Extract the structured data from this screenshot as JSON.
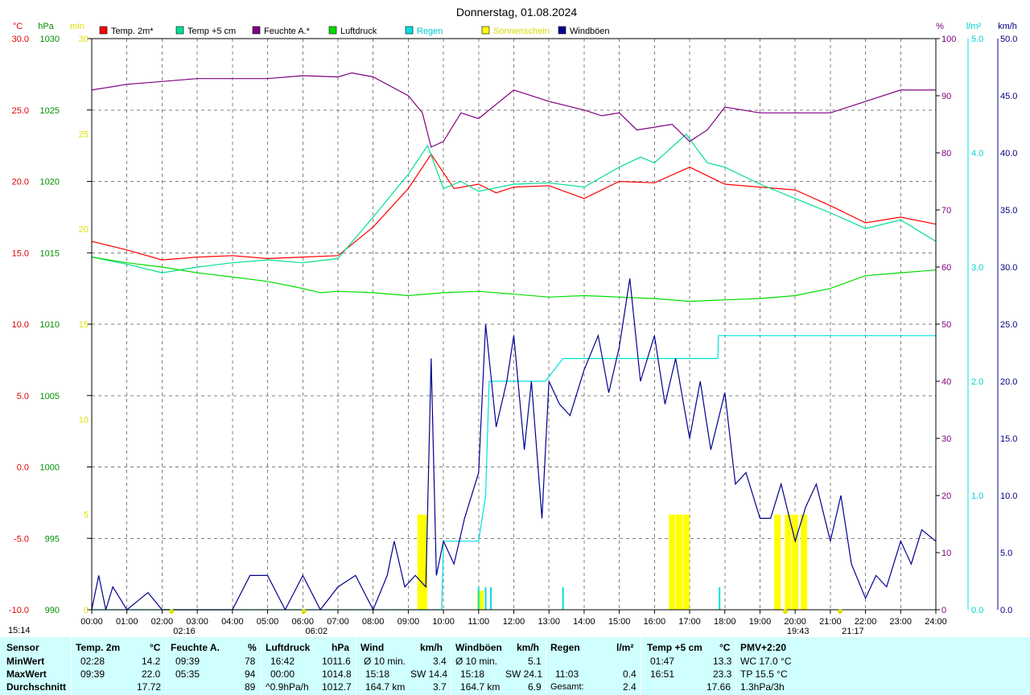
{
  "chart_data": {
    "type": "line",
    "title": "Donnerstag, 01.08.2024",
    "x_axis": {
      "ticks": [
        "00:00",
        "01:00",
        "02:00",
        "03:00",
        "04:00",
        "05:00",
        "06:00",
        "07:00",
        "08:00",
        "09:00",
        "10:00",
        "11:00",
        "12:00",
        "13:00",
        "14:00",
        "15:00",
        "16:00",
        "17:00",
        "18:00",
        "19:00",
        "20:00",
        "21:00",
        "22:00",
        "23:00",
        "24:00"
      ],
      "range_hours": [
        0,
        24
      ]
    },
    "axes": {
      "temp": {
        "unit": "°C",
        "range": [
          -10,
          30
        ],
        "ticks": [
          "30.0",
          "25.0",
          "20.0",
          "15.0",
          "10.0",
          "5.0",
          "0.0",
          "-5.0",
          "-10.0"
        ]
      },
      "pressure": {
        "unit": "hPa",
        "range": [
          990,
          1030
        ],
        "ticks": [
          "1030",
          "1025",
          "1020",
          "1015",
          "1010",
          "1005",
          "1000",
          "995",
          "990"
        ]
      },
      "sunshine": {
        "unit": "min",
        "range": [
          0,
          30
        ],
        "ticks": [
          "30",
          "25",
          "20",
          "15",
          "10",
          "5",
          "0"
        ]
      },
      "humidity": {
        "unit": "%",
        "range": [
          0,
          100
        ],
        "ticks": [
          "100",
          "90",
          "80",
          "70",
          "60",
          "50",
          "40",
          "30",
          "20",
          "10",
          "0"
        ]
      },
      "rain": {
        "unit": "l/m²",
        "range": [
          0,
          5
        ],
        "ticks": [
          "5.0",
          "4.0",
          "3.0",
          "2.0",
          "1.0",
          "0.0"
        ]
      },
      "wind": {
        "unit": "km/h",
        "range": [
          0,
          50
        ],
        "ticks": [
          "50.0",
          "45.0",
          "40.0",
          "35.0",
          "30.0",
          "25.0",
          "20.0",
          "15.0",
          "10.0",
          "5.0",
          "0.0"
        ]
      }
    },
    "legend": [
      {
        "name": "Temp. 2m*",
        "color": "#ff0000"
      },
      {
        "name": "Temp +5 cm",
        "color": "#00e090"
      },
      {
        "name": "Feuchte A.*",
        "color": "#800080"
      },
      {
        "name": "Luftdruck",
        "color": "#00dd00"
      },
      {
        "name": "Regen",
        "color": "#00e0e0"
      },
      {
        "name": "Sonnenschein",
        "color": "#ffff00"
      },
      {
        "name": "Windböen",
        "color": "#000090"
      }
    ],
    "series": [
      {
        "name": "Temp. 2m*",
        "axis": "temp",
        "color": "#ff0000",
        "x": [
          0,
          1,
          2,
          3,
          4,
          5,
          6,
          7,
          8,
          9,
          9.65,
          10.3,
          11,
          11.5,
          12,
          13,
          14,
          15,
          16,
          17,
          18,
          19,
          20,
          21,
          22,
          23,
          24
        ],
        "y": [
          15.8,
          15.2,
          14.5,
          14.7,
          14.8,
          14.6,
          14.7,
          14.8,
          16.8,
          19.5,
          21.9,
          19.5,
          19.8,
          19.2,
          19.6,
          19.7,
          18.8,
          20.0,
          19.9,
          21.0,
          19.8,
          19.6,
          19.4,
          18.3,
          17.1,
          17.5,
          17.0
        ]
      },
      {
        "name": "Temp +5 cm",
        "axis": "temp",
        "color": "#00e090",
        "x": [
          0,
          1,
          2,
          3,
          4,
          5,
          6,
          7,
          8,
          9,
          9.55,
          10,
          10.5,
          11,
          12,
          13,
          14,
          15,
          15.6,
          16,
          16.9,
          17.5,
          18,
          19,
          20,
          21,
          22,
          23,
          24
        ],
        "y": [
          14.7,
          14.2,
          13.6,
          14.0,
          14.3,
          14.5,
          14.3,
          14.6,
          17.5,
          20.5,
          22.5,
          19.5,
          20.0,
          19.3,
          19.8,
          19.9,
          19.6,
          21.0,
          21.7,
          21.3,
          23.3,
          21.3,
          21.0,
          19.8,
          18.8,
          17.8,
          16.7,
          17.3,
          15.8
        ]
      },
      {
        "name": "Feuchte A.*",
        "axis": "humidity",
        "color": "#800080",
        "x": [
          0,
          0.5,
          1,
          2,
          3,
          4,
          5,
          6,
          7,
          7.4,
          8,
          9,
          9.4,
          9.65,
          10,
          10.5,
          11,
          12,
          13,
          14,
          14.5,
          15,
          15.5,
          16,
          16.5,
          17,
          17.5,
          18,
          19,
          20,
          21,
          22,
          23,
          24
        ],
        "y": [
          91,
          91.5,
          92,
          92.5,
          93,
          93,
          93,
          93.5,
          93.3,
          94,
          93.3,
          90,
          87,
          81,
          82,
          87,
          86,
          91,
          89,
          87.5,
          86.5,
          87,
          84,
          84.5,
          85,
          82,
          84,
          88,
          87,
          87,
          87,
          89,
          91,
          91
        ]
      },
      {
        "name": "Luftdruck",
        "axis": "pressure",
        "color": "#00dd00",
        "x": [
          0,
          1,
          2,
          3,
          4,
          5,
          6,
          6.5,
          7,
          8,
          9,
          10,
          11,
          12,
          13,
          14,
          15,
          16,
          17,
          18,
          19,
          20,
          21,
          22,
          23,
          24
        ],
        "y": [
          1014.7,
          1014.3,
          1014.0,
          1013.6,
          1013.3,
          1013.0,
          1012.5,
          1012.2,
          1012.3,
          1012.2,
          1012.0,
          1012.2,
          1012.3,
          1012.1,
          1011.9,
          1012.0,
          1011.9,
          1011.8,
          1011.6,
          1011.7,
          1011.8,
          1012.0,
          1012.5,
          1013.4,
          1013.6,
          1013.8
        ]
      },
      {
        "name": "Regen",
        "axis": "rain",
        "color": "#00e0e0",
        "x": [
          0,
          9.95,
          10,
          11.0,
          11.2,
          11.3,
          12,
          12.9,
          13.4,
          15.0,
          16.0,
          17.8,
          17.82,
          24
        ],
        "y": [
          0,
          0,
          0.6,
          0.6,
          1.0,
          2.0,
          2.0,
          2.0,
          2.2,
          2.2,
          2.2,
          2.2,
          2.4,
          2.4
        ]
      },
      {
        "name": "Windböen",
        "axis": "wind",
        "color": "#000090",
        "x": [
          0,
          0.2,
          0.4,
          0.6,
          1,
          1.6,
          2,
          3,
          4,
          4.5,
          5,
          5.5,
          6,
          6.5,
          7,
          7.5,
          8,
          8.4,
          8.6,
          8.9,
          9.2,
          9.5,
          9.65,
          9.8,
          10,
          10.3,
          10.6,
          11,
          11.2,
          11.5,
          11.8,
          12,
          12.3,
          12.5,
          12.8,
          13,
          13.3,
          13.6,
          14,
          14.4,
          14.7,
          15,
          15.3,
          15.6,
          16,
          16.3,
          16.6,
          17,
          17.3,
          17.6,
          18,
          18.3,
          18.6,
          19,
          19.3,
          19.6,
          20,
          20.3,
          20.6,
          21,
          21.3,
          21.6,
          22,
          22.3,
          22.6,
          23,
          23.3,
          23.6,
          24
        ],
        "y": [
          0,
          3,
          0,
          2,
          0,
          1.5,
          0,
          0,
          0,
          3,
          3,
          0,
          3,
          0,
          2,
          3,
          0,
          3,
          6,
          2,
          3,
          2,
          22,
          3,
          6,
          4,
          8,
          12,
          25,
          16,
          20,
          24,
          14,
          20,
          8,
          20,
          18,
          17,
          21,
          24,
          19,
          23,
          29,
          20,
          24,
          18,
          22,
          15,
          20,
          14,
          19,
          11,
          12,
          8,
          8,
          11,
          6,
          9,
          11,
          6,
          10,
          4,
          1,
          3,
          2,
          6,
          4,
          7,
          6
        ]
      }
    ],
    "sunshine_bars": [
      {
        "x": 9.35,
        "min": 5
      },
      {
        "x": 9.45,
        "min": 5
      },
      {
        "x": 11.05,
        "min": 1
      },
      {
        "x": 16.5,
        "min": 5
      },
      {
        "x": 16.7,
        "min": 5
      },
      {
        "x": 16.9,
        "min": 5
      },
      {
        "x": 19.5,
        "min": 5
      },
      {
        "x": 19.8,
        "min": 5
      },
      {
        "x": 20.0,
        "min": 5
      },
      {
        "x": 20.25,
        "min": 5
      }
    ],
    "rain_ticks": [
      11.0,
      11.2,
      11.35,
      17.85,
      13.4
    ],
    "markers": [
      {
        "label": "02:16",
        "x": 2.27
      },
      {
        "label": "06:02",
        "x": 6.03
      },
      {
        "label": "19:43",
        "x": 19.72
      },
      {
        "label": "21:17",
        "x": 21.28
      }
    ],
    "corner_time": "15:14"
  },
  "footer": {
    "sensor": {
      "header": "Sensor",
      "rows": [
        "MinWert",
        "MaxWert",
        "Durchschnitt"
      ]
    },
    "temp2m": {
      "title": "Temp. 2m",
      "unit": "°C",
      "min_time": "02:28",
      "min_val": "14.2",
      "max_time": "09:39",
      "max_val": "22.0",
      "avg": "17.72"
    },
    "humidity": {
      "title": "Feuchte A.",
      "unit": "%",
      "min_time": "09:39",
      "min_val": "78",
      "max_time": "05:35",
      "max_val": "94",
      "avg": "89"
    },
    "pressure": {
      "title": "Luftdruck",
      "unit": "hPa",
      "min_time": "16:42",
      "min_val": "1011.6",
      "max_time": "00:00",
      "max_val": "1014.8",
      "trend": "^0.9hPa/h",
      "avg": "1012.7"
    },
    "wind": {
      "title": "Wind",
      "unit": "km/h",
      "r1_label": "Ø 10 min.",
      "r1_val": "3.4",
      "r2_time": "15:18",
      "r2_dir": "SW 14.4",
      "r3_km": "164.7 km",
      "r3_val": "3.7"
    },
    "gusts": {
      "title": "Windböen",
      "unit": "km/h",
      "r1_label": "Ø 10 min.",
      "r1_val": "5.1",
      "r2_time": "15:18",
      "r2_dir": "SW 24.1",
      "r3_km": "164.7 km",
      "r3_val": "6.9"
    },
    "rain": {
      "title": "Regen",
      "unit": "l/m²",
      "r2_time": "11:03",
      "r2_val": "0.4",
      "r3_label": "Gesamt:",
      "r3_val": "2.4"
    },
    "temp5": {
      "title": "Temp +5 cm",
      "unit": "°C",
      "min_time": "01:47",
      "min_val": "13.3",
      "max_time": "16:51",
      "max_val": "23.3",
      "avg": "17.66"
    },
    "pmv": {
      "title": "PMV+2:20",
      "r1": "WC 17.0 °C",
      "r2": "TP 15.5 °C",
      "r3": "1.3hPa/3h"
    }
  }
}
